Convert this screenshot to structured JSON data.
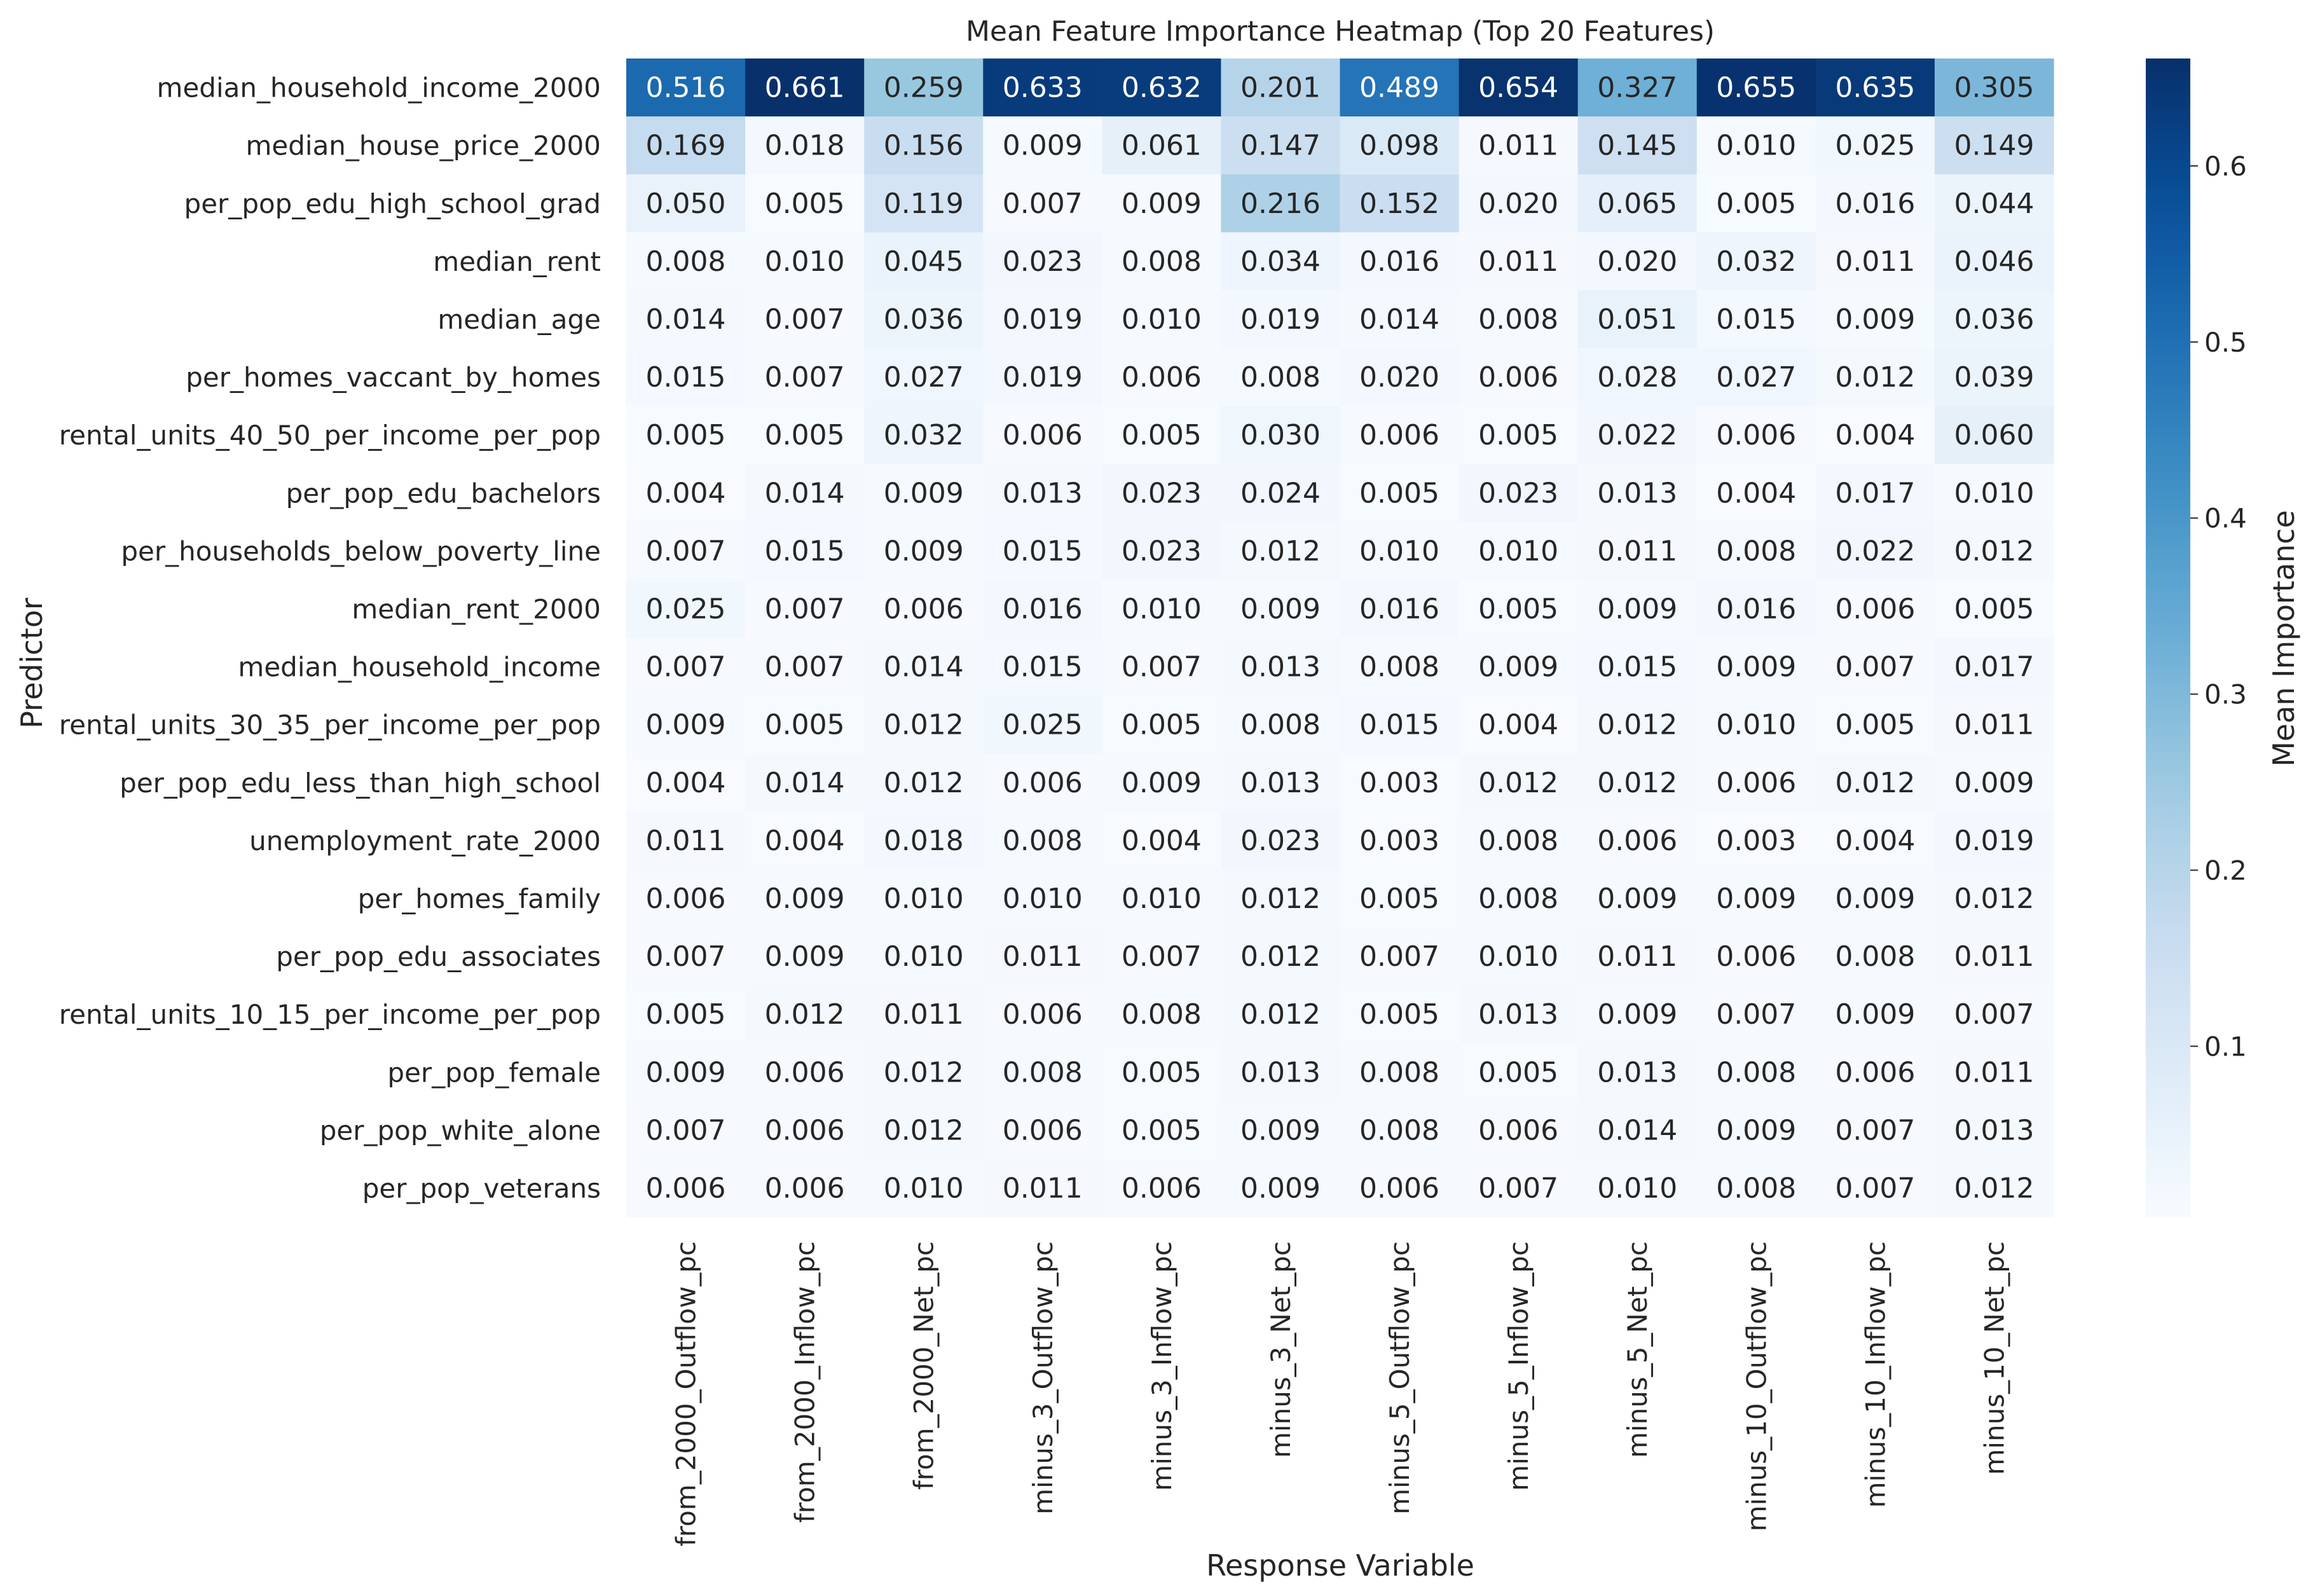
{
  "chart_data": {
    "type": "heatmap",
    "title": "Mean Feature Importance Heatmap (Top 20 Features)",
    "xlabel": "Response Variable",
    "ylabel": "Predictor",
    "colorbar_label": "Mean Importance",
    "colormap": "Blues",
    "color_range": [
      0.003,
      0.661
    ],
    "colorbar_ticks": [
      0.1,
      0.2,
      0.3,
      0.4,
      0.5,
      0.6
    ],
    "columns": [
      "from_2000_Outflow_pc",
      "from_2000_Inflow_pc",
      "from_2000_Net_pc",
      "minus_3_Outflow_pc",
      "minus_3_Inflow_pc",
      "minus_3_Net_pc",
      "minus_5_Outflow_pc",
      "minus_5_Inflow_pc",
      "minus_5_Net_pc",
      "minus_10_Outflow_pc",
      "minus_10_Inflow_pc",
      "minus_10_Net_pc"
    ],
    "rows": [
      "median_household_income_2000",
      "median_house_price_2000",
      "per_pop_edu_high_school_grad",
      "median_rent",
      "median_age",
      "per_homes_vaccant_by_homes",
      "rental_units_40_50_per_income_per_pop",
      "per_pop_edu_bachelors",
      "per_households_below_poverty_line",
      "median_rent_2000",
      "median_household_income",
      "rental_units_30_35_per_income_per_pop",
      "per_pop_edu_less_than_high_school",
      "unemployment_rate_2000",
      "per_homes_family",
      "per_pop_edu_associates",
      "rental_units_10_15_per_income_per_pop",
      "per_pop_female",
      "per_pop_white_alone",
      "per_pop_veterans"
    ],
    "values": [
      [
        0.516,
        0.661,
        0.259,
        0.633,
        0.632,
        0.201,
        0.489,
        0.654,
        0.327,
        0.655,
        0.635,
        0.305
      ],
      [
        0.169,
        0.018,
        0.156,
        0.009,
        0.061,
        0.147,
        0.098,
        0.011,
        0.145,
        0.01,
        0.025,
        0.149
      ],
      [
        0.05,
        0.005,
        0.119,
        0.007,
        0.009,
        0.216,
        0.152,
        0.02,
        0.065,
        0.005,
        0.016,
        0.044
      ],
      [
        0.008,
        0.01,
        0.045,
        0.023,
        0.008,
        0.034,
        0.016,
        0.011,
        0.02,
        0.032,
        0.011,
        0.046
      ],
      [
        0.014,
        0.007,
        0.036,
        0.019,
        0.01,
        0.019,
        0.014,
        0.008,
        0.051,
        0.015,
        0.009,
        0.036
      ],
      [
        0.015,
        0.007,
        0.027,
        0.019,
        0.006,
        0.008,
        0.02,
        0.006,
        0.028,
        0.027,
        0.012,
        0.039
      ],
      [
        0.005,
        0.005,
        0.032,
        0.006,
        0.005,
        0.03,
        0.006,
        0.005,
        0.022,
        0.006,
        0.004,
        0.06
      ],
      [
        0.004,
        0.014,
        0.009,
        0.013,
        0.023,
        0.024,
        0.005,
        0.023,
        0.013,
        0.004,
        0.017,
        0.01
      ],
      [
        0.007,
        0.015,
        0.009,
        0.015,
        0.023,
        0.012,
        0.01,
        0.01,
        0.011,
        0.008,
        0.022,
        0.012
      ],
      [
        0.025,
        0.007,
        0.006,
        0.016,
        0.01,
        0.009,
        0.016,
        0.005,
        0.009,
        0.016,
        0.006,
        0.005
      ],
      [
        0.007,
        0.007,
        0.014,
        0.015,
        0.007,
        0.013,
        0.008,
        0.009,
        0.015,
        0.009,
        0.007,
        0.017
      ],
      [
        0.009,
        0.005,
        0.012,
        0.025,
        0.005,
        0.008,
        0.015,
        0.004,
        0.012,
        0.01,
        0.005,
        0.011
      ],
      [
        0.004,
        0.014,
        0.012,
        0.006,
        0.009,
        0.013,
        0.003,
        0.012,
        0.012,
        0.006,
        0.012,
        0.009
      ],
      [
        0.011,
        0.004,
        0.018,
        0.008,
        0.004,
        0.023,
        0.003,
        0.008,
        0.006,
        0.003,
        0.004,
        0.019
      ],
      [
        0.006,
        0.009,
        0.01,
        0.01,
        0.01,
        0.012,
        0.005,
        0.008,
        0.009,
        0.009,
        0.009,
        0.012
      ],
      [
        0.007,
        0.009,
        0.01,
        0.011,
        0.007,
        0.012,
        0.007,
        0.01,
        0.011,
        0.006,
        0.008,
        0.011
      ],
      [
        0.005,
        0.012,
        0.011,
        0.006,
        0.008,
        0.012,
        0.005,
        0.013,
        0.009,
        0.007,
        0.009,
        0.007
      ],
      [
        0.009,
        0.006,
        0.012,
        0.008,
        0.005,
        0.013,
        0.008,
        0.005,
        0.013,
        0.008,
        0.006,
        0.011
      ],
      [
        0.007,
        0.006,
        0.012,
        0.006,
        0.005,
        0.009,
        0.008,
        0.006,
        0.014,
        0.009,
        0.007,
        0.013
      ],
      [
        0.006,
        0.006,
        0.01,
        0.011,
        0.006,
        0.009,
        0.006,
        0.007,
        0.01,
        0.008,
        0.007,
        0.012
      ]
    ],
    "value_format": "3 decimals"
  }
}
